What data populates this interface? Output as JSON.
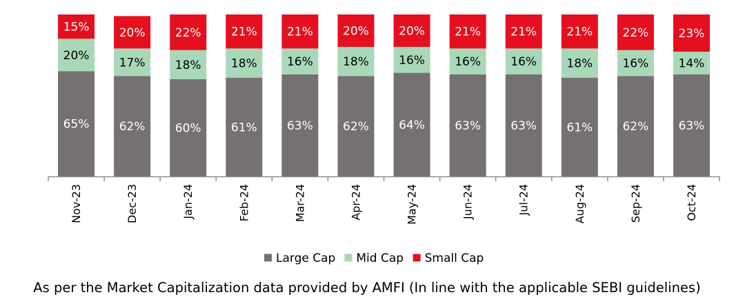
{
  "chart_data": {
    "type": "bar",
    "stacked": true,
    "value_format": "percent",
    "categories": [
      "Nov-23",
      "Dec-23",
      "Jan-24",
      "Feb-24",
      "Mar-24",
      "Apr-24",
      "May-24",
      "Jun-24",
      "Jul-24",
      "Aug-24",
      "Sep-24",
      "Oct-24"
    ],
    "series": [
      {
        "name": "Large Cap",
        "color": "#767171",
        "label_color": "#ffffff",
        "values": [
          65,
          62,
          60,
          61,
          63,
          62,
          64,
          63,
          63,
          61,
          62,
          63
        ]
      },
      {
        "name": "Mid Cap",
        "color": "#a9d8b8",
        "label_color": "#000000",
        "values": [
          20,
          17,
          18,
          18,
          16,
          18,
          16,
          16,
          16,
          18,
          16,
          14
        ]
      },
      {
        "name": "Small Cap",
        "color": "#e4101f",
        "label_color": "#ffffff",
        "values": [
          15,
          20,
          22,
          21,
          21,
          20,
          20,
          21,
          21,
          21,
          22,
          23
        ]
      }
    ],
    "ylim": [
      0,
      100
    ],
    "title": "",
    "xlabel": "",
    "ylabel": "",
    "legend_position": "bottom",
    "x_tick_rotation": "vertical",
    "grid": false
  },
  "footnote": "As per the Market Capitalization data provided by AMFI (In line with the applicable SEBI guidelines)"
}
